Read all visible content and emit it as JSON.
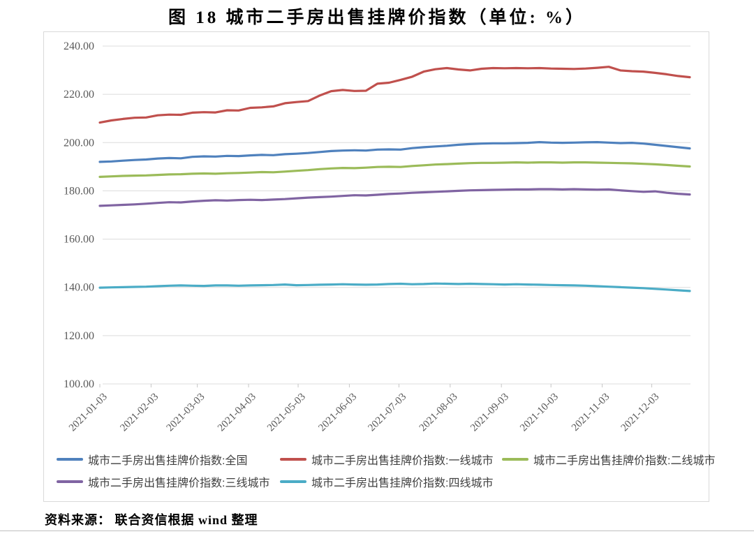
{
  "title": "图 18  城市二手房出售挂牌价指数（单位: %）",
  "source_note": "资料来源： 联合资信根据 wind 整理",
  "colors": {
    "grid": "#dcdcdc",
    "tick": "#c6c6c6",
    "axis_text": "#595959",
    "legend_text": "#404040",
    "box_border": "#d9d9d9",
    "series_national": "#4F81BD",
    "series_tier1": "#C0504D",
    "series_tier2": "#9BBB59",
    "series_tier3": "#8064A2",
    "series_tier4": "#4BACC6"
  },
  "chart_data": {
    "type": "line",
    "title": "图 18  城市二手房出售挂牌价指数（单位: %）",
    "unit": "%",
    "grid": true,
    "legend_position": "bottom",
    "start_date": "2021-01-03",
    "interval_days": 7,
    "n_points": 52,
    "ylim": [
      100,
      240
    ],
    "y_ticks": [
      100,
      120,
      140,
      160,
      180,
      200,
      220,
      240
    ],
    "y_tick_labels": [
      "100.00",
      "120.00",
      "140.00",
      "160.00",
      "180.00",
      "200.00",
      "220.00",
      "240.00"
    ],
    "x_tick_labels": [
      "2021-01-03",
      "2021-02-03",
      "2021-03-03",
      "2021-04-03",
      "2021-05-03",
      "2021-06-03",
      "2021-07-03",
      "2021-08-03",
      "2021-09-03",
      "2021-10-03",
      "2021-11-03",
      "2021-12-03"
    ],
    "series": [
      {
        "name": "城市二手房出售挂牌价指数:全国",
        "color": "#4F81BD",
        "values": [
          192.0,
          192.2,
          192.5,
          192.8,
          193.0,
          193.4,
          193.6,
          193.5,
          194.1,
          194.3,
          194.2,
          194.5,
          194.4,
          194.7,
          194.9,
          194.8,
          195.2,
          195.4,
          195.7,
          196.1,
          196.5,
          196.7,
          196.8,
          196.7,
          197.1,
          197.2,
          197.1,
          197.7,
          198.1,
          198.4,
          198.7,
          199.1,
          199.4,
          199.6,
          199.7,
          199.7,
          199.8,
          199.9,
          200.2,
          200.0,
          199.9,
          200.0,
          200.1,
          200.2,
          200.0,
          199.8,
          199.9,
          199.6,
          199.1,
          198.6,
          198.1,
          197.6
        ]
      },
      {
        "name": "城市二手房出售挂牌价指数:一线城市",
        "color": "#C0504D",
        "values": [
          208.3,
          209.2,
          209.8,
          210.3,
          210.4,
          211.3,
          211.6,
          211.5,
          212.4,
          212.6,
          212.5,
          213.4,
          213.3,
          214.4,
          214.6,
          215.0,
          216.3,
          216.8,
          217.2,
          219.5,
          221.3,
          221.8,
          221.4,
          221.5,
          224.4,
          224.8,
          226.0,
          227.3,
          229.4,
          230.4,
          230.9,
          230.3,
          229.9,
          230.6,
          230.9,
          230.8,
          230.9,
          230.8,
          230.9,
          230.7,
          230.6,
          230.5,
          230.7,
          231.0,
          231.4,
          229.9,
          229.6,
          229.4,
          228.9,
          228.3,
          227.6,
          227.1
        ]
      },
      {
        "name": "城市二手房出售挂牌价指数:二线城市",
        "color": "#9BBB59",
        "values": [
          185.8,
          186.0,
          186.2,
          186.3,
          186.4,
          186.6,
          186.8,
          186.9,
          187.1,
          187.2,
          187.1,
          187.3,
          187.4,
          187.6,
          187.8,
          187.7,
          188.0,
          188.3,
          188.6,
          189.0,
          189.3,
          189.5,
          189.4,
          189.6,
          189.9,
          190.0,
          189.9,
          190.3,
          190.6,
          190.9,
          191.1,
          191.3,
          191.5,
          191.6,
          191.6,
          191.7,
          191.8,
          191.7,
          191.8,
          191.8,
          191.7,
          191.8,
          191.8,
          191.7,
          191.6,
          191.5,
          191.4,
          191.2,
          191.0,
          190.7,
          190.4,
          190.1
        ]
      },
      {
        "name": "城市二手房出售挂牌价指数:三线城市",
        "color": "#8064A2",
        "values": [
          173.8,
          174.0,
          174.2,
          174.4,
          174.7,
          175.0,
          175.3,
          175.2,
          175.6,
          175.9,
          176.1,
          176.0,
          176.2,
          176.3,
          176.2,
          176.4,
          176.6,
          176.9,
          177.2,
          177.4,
          177.6,
          177.9,
          178.2,
          178.1,
          178.4,
          178.7,
          178.9,
          179.2,
          179.4,
          179.6,
          179.8,
          180.0,
          180.2,
          180.3,
          180.4,
          180.5,
          180.6,
          180.6,
          180.7,
          180.7,
          180.6,
          180.7,
          180.6,
          180.5,
          180.6,
          180.2,
          179.9,
          179.6,
          179.8,
          179.2,
          178.8,
          178.5
        ]
      },
      {
        "name": "城市二手房出售挂牌价指数:四线城市",
        "color": "#4BACC6",
        "values": [
          139.9,
          140.0,
          140.1,
          140.2,
          140.3,
          140.5,
          140.7,
          140.8,
          140.7,
          140.6,
          140.8,
          140.8,
          140.7,
          140.8,
          140.9,
          141.0,
          141.2,
          140.9,
          141.0,
          141.1,
          141.2,
          141.3,
          141.2,
          141.1,
          141.2,
          141.4,
          141.5,
          141.3,
          141.4,
          141.6,
          141.5,
          141.4,
          141.5,
          141.4,
          141.3,
          141.2,
          141.3,
          141.2,
          141.1,
          141.0,
          140.9,
          140.8,
          140.7,
          140.5,
          140.3,
          140.1,
          139.9,
          139.7,
          139.4,
          139.1,
          138.8,
          138.5
        ]
      }
    ]
  },
  "legend": {
    "items": [
      {
        "label": "城市二手房出售挂牌价指数:全国",
        "color": "#4F81BD"
      },
      {
        "label": "城市二手房出售挂牌价指数:一线城市",
        "color": "#C0504D"
      },
      {
        "label": "城市二手房出售挂牌价指数:二线城市",
        "color": "#9BBB59"
      },
      {
        "label": "城市二手房出售挂牌价指数:三线城市",
        "color": "#8064A2"
      },
      {
        "label": "城市二手房出售挂牌价指数:四线城市",
        "color": "#4BACC6"
      }
    ]
  }
}
